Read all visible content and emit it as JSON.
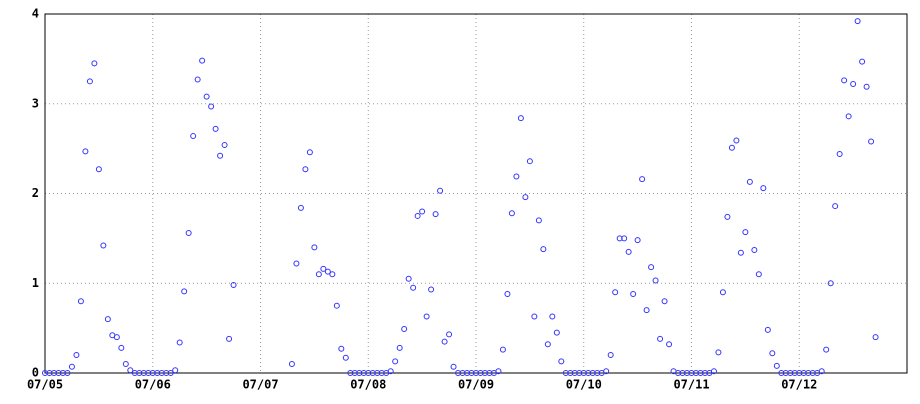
{
  "chart_data": {
    "type": "scatter",
    "x": [
      0,
      1,
      2,
      3,
      4,
      5,
      6,
      7,
      8,
      9,
      10,
      11,
      12,
      13,
      14,
      15,
      16,
      17,
      18,
      19,
      20,
      21,
      22,
      23,
      24,
      25,
      26,
      27,
      28,
      29,
      30,
      31,
      32,
      33,
      34,
      35,
      36,
      37,
      38,
      39,
      40,
      41,
      42,
      55,
      56,
      57,
      58,
      59,
      60,
      61,
      62,
      63,
      64,
      65,
      66,
      67,
      68,
      69,
      70,
      71,
      72,
      73,
      74,
      75,
      76,
      77,
      78,
      79,
      80,
      81,
      82,
      83,
      84,
      85,
      86,
      87,
      88,
      89,
      90,
      91,
      92,
      93,
      94,
      95,
      96,
      97,
      98,
      99,
      100,
      101,
      102,
      103,
      104,
      105,
      106,
      107,
      108,
      109,
      110,
      111,
      112,
      113,
      114,
      115,
      116,
      117,
      118,
      119,
      120,
      121,
      122,
      123,
      124,
      125,
      126,
      127,
      128,
      129,
      130,
      131,
      132,
      133,
      134,
      135,
      136,
      137,
      138,
      139,
      140,
      141,
      142,
      143,
      144,
      145,
      146,
      147,
      148,
      149,
      150,
      151,
      152,
      153,
      154,
      155,
      156,
      157,
      158,
      159,
      160,
      161,
      162,
      163,
      164,
      165,
      166,
      167,
      168,
      169,
      170,
      171,
      172,
      173,
      174,
      175,
      176,
      177,
      178,
      179,
      180,
      181,
      182,
      183,
      184,
      185
    ],
    "values": [
      0,
      0,
      0,
      0,
      0,
      0,
      0.07,
      0.2,
      0.8,
      2.47,
      3.25,
      3.45,
      2.27,
      1.42,
      0.6,
      0.42,
      0.4,
      0.28,
      0.1,
      0.03,
      0,
      0,
      0,
      0,
      0,
      0,
      0,
      0,
      0,
      0.03,
      0.34,
      0.91,
      1.56,
      2.64,
      3.27,
      3.48,
      3.08,
      2.97,
      2.72,
      2.42,
      2.54,
      0.38,
      0.98,
      0.1,
      1.22,
      1.84,
      2.27,
      2.46,
      1.4,
      1.1,
      1.16,
      1.13,
      1.1,
      0.75,
      0.27,
      0.17,
      0,
      0,
      0,
      0,
      0,
      0,
      0,
      0,
      0,
      0.02,
      0.13,
      0.28,
      0.49,
      1.05,
      0.95,
      1.75,
      1.8,
      0.63,
      0.93,
      1.77,
      2.03,
      0.35,
      0.43,
      0.07,
      0,
      0,
      0,
      0,
      0,
      0,
      0,
      0,
      0,
      0.02,
      0.26,
      0.88,
      1.78,
      2.19,
      2.84,
      1.96,
      2.36,
      0.63,
      1.7,
      1.38,
      0.32,
      0.63,
      0.45,
      0.13,
      0,
      0,
      0,
      0,
      0,
      0,
      0,
      0,
      0,
      0.02,
      0.2,
      0.9,
      1.5,
      1.5,
      1.35,
      0.88,
      1.48,
      2.16,
      0.7,
      1.18,
      1.03,
      0.38,
      0.8,
      0.32,
      0.02,
      0,
      0,
      0,
      0,
      0,
      0,
      0,
      0,
      0.02,
      0.23,
      0.9,
      1.74,
      2.51,
      2.59,
      1.34,
      1.57,
      2.13,
      1.37,
      1.1,
      2.06,
      0.48,
      0.22,
      0.08,
      0,
      0,
      0,
      0,
      0,
      0,
      0,
      0,
      0,
      0.02,
      0.26,
      1.0,
      1.86,
      2.44,
      3.26,
      2.86,
      3.22,
      3.92,
      3.47,
      3.19,
      2.58,
      0.4
    ],
    "color": "#3333ff",
    "xlim": [
      0,
      192
    ],
    "xticks": [
      {
        "value": 0,
        "label": "07/05"
      },
      {
        "value": 24,
        "label": "07/06"
      },
      {
        "value": 48,
        "label": "07/07"
      },
      {
        "value": 72,
        "label": "07/08"
      },
      {
        "value": 96,
        "label": "07/09"
      },
      {
        "value": 120,
        "label": "07/10"
      },
      {
        "value": 144,
        "label": "07/11"
      },
      {
        "value": 168,
        "label": "07/12"
      }
    ],
    "ylim": [
      0,
      4
    ],
    "yticks": [
      0,
      1,
      2,
      3,
      4
    ],
    "grid": true
  }
}
